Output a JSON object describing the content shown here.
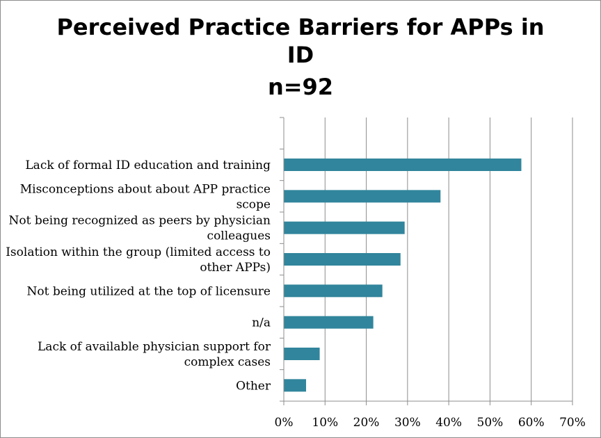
{
  "chart_data": {
    "type": "bar",
    "orientation": "horizontal",
    "title_lines": [
      "Perceived Practice Barriers for APPs in",
      "ID",
      "n=92"
    ],
    "categories": [
      [
        "Lack of formal ID education and training"
      ],
      [
        "Misconceptions about about APP practice",
        "scope"
      ],
      [
        "Not being recognized as peers by physician",
        "colleagues"
      ],
      [
        "Isolation within the group (limited access to",
        "other APPs)"
      ],
      [
        "Not being utilized at the top of licensure"
      ],
      [
        "n/a"
      ],
      [
        "Lack of available physician support for",
        "complex cases"
      ],
      [
        "Other"
      ]
    ],
    "values": [
      57.6,
      38.0,
      29.3,
      28.3,
      23.9,
      21.7,
      8.7,
      5.4
    ],
    "xlim": [
      0,
      70
    ],
    "x_ticks": [
      "0%",
      "10%",
      "20%",
      "30%",
      "40%",
      "50%",
      "60%",
      "70%"
    ],
    "grid": "vertical",
    "legend": "none",
    "bar_color": "#31859c",
    "grid_color": "#8c8c8c"
  }
}
